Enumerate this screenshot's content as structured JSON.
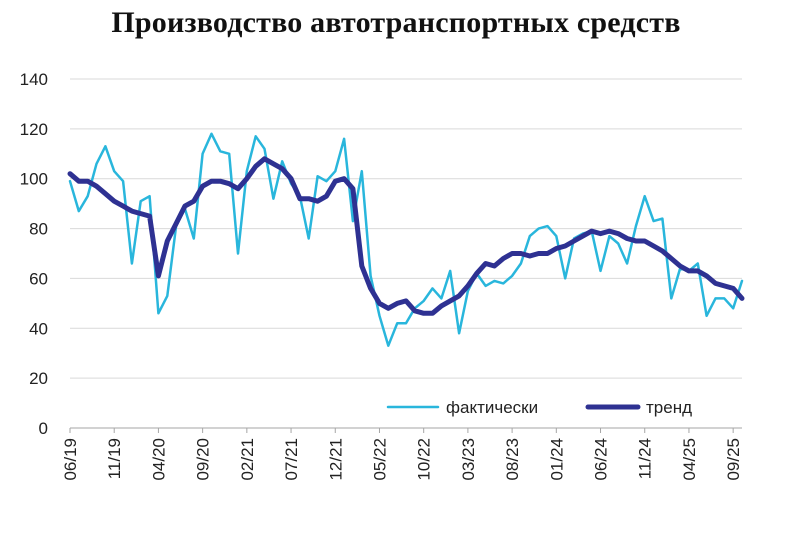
{
  "chart_data": {
    "type": "line",
    "title": "Производство автотранспортных средств",
    "xlabel": "",
    "ylabel": "",
    "ylim": [
      0,
      140
    ],
    "yticks": [
      0,
      20,
      40,
      60,
      80,
      100,
      120,
      140
    ],
    "grid": true,
    "legend_position": "bottom-right",
    "x_tick_labels": [
      "06/19",
      "11/19",
      "04/20",
      "09/20",
      "02/21",
      "07/21",
      "12/21",
      "05/22",
      "10/22",
      "03/23",
      "08/23",
      "01/24",
      "06/24",
      "11/24",
      "04/25",
      "09/25"
    ],
    "x_start": "06/19",
    "x_end": "09/25",
    "series": [
      {
        "name": "фактически",
        "color": "#29B6DC",
        "values": [
          99,
          87,
          93,
          106,
          113,
          103,
          99,
          66,
          91,
          93,
          46,
          53,
          81,
          88,
          76,
          110,
          118,
          111,
          110,
          70,
          103,
          117,
          112,
          92,
          107,
          98,
          93,
          76,
          101,
          99,
          103,
          116,
          83,
          103,
          61,
          45,
          33,
          42,
          42,
          48,
          51,
          56,
          52,
          63,
          38,
          55,
          62,
          57,
          59,
          58,
          61,
          66,
          77,
          80,
          81,
          77,
          60,
          76,
          78,
          79,
          63,
          77,
          74,
          66,
          81,
          93,
          83,
          84,
          52,
          64,
          63,
          66,
          45,
          52,
          52,
          48,
          59
        ]
      },
      {
        "name": "тренд",
        "color": "#2E3192",
        "values": [
          102,
          99,
          99,
          97,
          94,
          91,
          89,
          87,
          86,
          85,
          61,
          75,
          82,
          89,
          91,
          97,
          99,
          99,
          98,
          96,
          100,
          105,
          108,
          106,
          104,
          100,
          92,
          92,
          91,
          93,
          99,
          100,
          96,
          65,
          56,
          50,
          48,
          50,
          51,
          47,
          46,
          46,
          49,
          51,
          53,
          57,
          62,
          66,
          65,
          68,
          70,
          70,
          69,
          70,
          70,
          72,
          73,
          75,
          77,
          79,
          78,
          79,
          78,
          76,
          75,
          75,
          73,
          71,
          68,
          65,
          63,
          63,
          61,
          58,
          57,
          56,
          52
        ]
      }
    ]
  }
}
